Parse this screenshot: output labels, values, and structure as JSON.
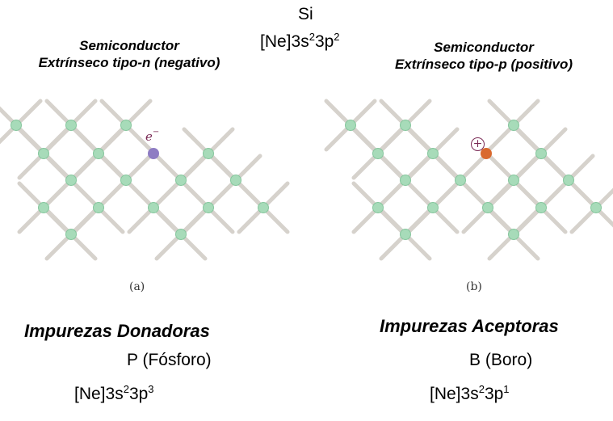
{
  "top": {
    "element": "Si",
    "config": {
      "base": "[Ne]3s",
      "sup1": "2",
      "mid": "3p",
      "sup2": "2"
    }
  },
  "panel_a": {
    "title_line1": "Semiconductor",
    "title_line2": "Extrínseco  tipo-n (negativo)",
    "carrier_label": "e",
    "carrier_sign": "−",
    "caption": "(a)",
    "impurity_heading": "Impurezas Donadoras",
    "element_name": "P (Fósforo)",
    "config": {
      "base": "[Ne]3s",
      "sup1": "2",
      "mid": "3p",
      "sup2": "3"
    }
  },
  "panel_b": {
    "title_line1": "Semiconductor",
    "title_line2": "Extrínseco  tipo-p (positivo)",
    "carrier_label": "+",
    "caption": "(b)",
    "impurity_heading": "Impurezas Aceptoras",
    "element_name": "B (Boro)",
    "config": {
      "base": "[Ne]3s",
      "sup1": "2",
      "mid": "3p",
      "sup2": "1"
    }
  },
  "colors": {
    "bond": "#d6d2cc",
    "si_atom": "#a7dbb9",
    "si_atom_edge": "#86c69d",
    "donor_atom": "#8e7cc3",
    "acceptor_atom": "#d9692e",
    "carrier_mark": "#7a2a55"
  }
}
